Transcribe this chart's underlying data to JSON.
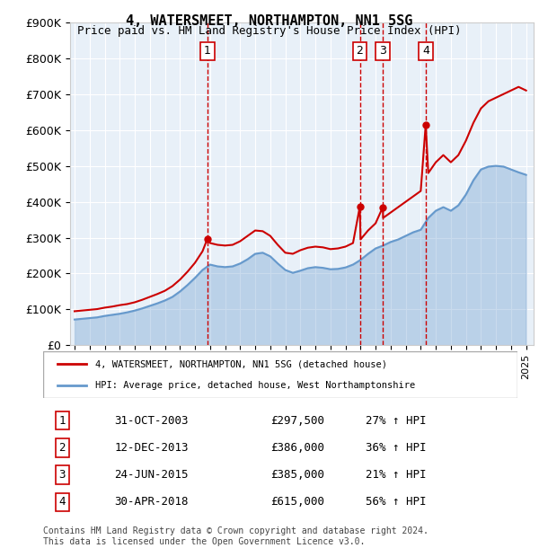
{
  "title": "4, WATERSMEET, NORTHAMPTON, NN1 5SG",
  "subtitle": "Price paid vs. HM Land Registry's House Price Index (HPI)",
  "ylabel_ticks": [
    "£0",
    "£100K",
    "£200K",
    "£300K",
    "£400K",
    "£500K",
    "£600K",
    "£700K",
    "£800K",
    "£900K"
  ],
  "ylim": [
    0,
    900000
  ],
  "xlim_start": 1995.0,
  "xlim_end": 2025.5,
  "background_color": "#ddeeff",
  "plot_bg": "#e8f0f8",
  "red_line_color": "#cc0000",
  "blue_line_color": "#6699cc",
  "sale_dates": [
    2003.83,
    2013.95,
    2015.48,
    2018.33
  ],
  "sale_prices": [
    297500,
    386000,
    385000,
    615000
  ],
  "sale_labels": [
    "1",
    "2",
    "3",
    "4"
  ],
  "legend_label_red": "4, WATERSMEET, NORTHAMPTON, NN1 5SG (detached house)",
  "legend_label_blue": "HPI: Average price, detached house, West Northamptonshire",
  "table_rows": [
    [
      "1",
      "31-OCT-2003",
      "£297,500",
      "27% ↑ HPI"
    ],
    [
      "2",
      "12-DEC-2013",
      "£386,000",
      "36% ↑ HPI"
    ],
    [
      "3",
      "24-JUN-2015",
      "£385,000",
      "21% ↑ HPI"
    ],
    [
      "4",
      "30-APR-2018",
      "£615,000",
      "56% ↑ HPI"
    ]
  ],
  "footnote": "Contains HM Land Registry data © Crown copyright and database right 2024.\nThis data is licensed under the Open Government Licence v3.0.",
  "red_hpi_x": [
    1995.0,
    1995.5,
    1996.0,
    1996.5,
    1997.0,
    1997.5,
    1998.0,
    1998.5,
    1999.0,
    1999.5,
    2000.0,
    2000.5,
    2001.0,
    2001.5,
    2002.0,
    2002.5,
    2003.0,
    2003.5,
    2003.83,
    2004.0,
    2004.5,
    2005.0,
    2005.5,
    2006.0,
    2006.5,
    2007.0,
    2007.5,
    2008.0,
    2008.5,
    2009.0,
    2009.5,
    2010.0,
    2010.5,
    2011.0,
    2011.5,
    2012.0,
    2012.5,
    2013.0,
    2013.5,
    2013.95,
    2014.0,
    2014.5,
    2015.0,
    2015.48,
    2015.5,
    2016.0,
    2016.5,
    2017.0,
    2017.5,
    2018.0,
    2018.33,
    2018.5,
    2019.0,
    2019.5,
    2020.0,
    2020.5,
    2021.0,
    2021.5,
    2022.0,
    2022.5,
    2023.0,
    2023.5,
    2024.0,
    2024.5,
    2025.0
  ],
  "red_hpi_y": [
    95000,
    97000,
    99000,
    101000,
    105000,
    108000,
    112000,
    115000,
    120000,
    127000,
    135000,
    143000,
    152000,
    165000,
    183000,
    205000,
    230000,
    262000,
    297500,
    285000,
    280000,
    278000,
    280000,
    290000,
    305000,
    320000,
    318000,
    305000,
    280000,
    258000,
    255000,
    265000,
    272000,
    275000,
    273000,
    268000,
    270000,
    275000,
    285000,
    386000,
    295000,
    320000,
    340000,
    385000,
    355000,
    370000,
    385000,
    400000,
    415000,
    430000,
    615000,
    480000,
    510000,
    530000,
    510000,
    530000,
    570000,
    620000,
    660000,
    680000,
    690000,
    700000,
    710000,
    720000,
    710000
  ],
  "blue_hpi_x": [
    1995.0,
    1995.5,
    1996.0,
    1996.5,
    1997.0,
    1997.5,
    1998.0,
    1998.5,
    1999.0,
    1999.5,
    2000.0,
    2000.5,
    2001.0,
    2001.5,
    2002.0,
    2002.5,
    2003.0,
    2003.5,
    2004.0,
    2004.5,
    2005.0,
    2005.5,
    2006.0,
    2006.5,
    2007.0,
    2007.5,
    2008.0,
    2008.5,
    2009.0,
    2009.5,
    2010.0,
    2010.5,
    2011.0,
    2011.5,
    2012.0,
    2012.5,
    2013.0,
    2013.5,
    2014.0,
    2014.5,
    2015.0,
    2015.5,
    2016.0,
    2016.5,
    2017.0,
    2017.5,
    2018.0,
    2018.5,
    2019.0,
    2019.5,
    2020.0,
    2020.5,
    2021.0,
    2021.5,
    2022.0,
    2022.5,
    2023.0,
    2023.5,
    2024.0,
    2024.5,
    2025.0
  ],
  "blue_hpi_y": [
    72000,
    74000,
    76000,
    78000,
    82000,
    85000,
    88000,
    92000,
    97000,
    103000,
    110000,
    117000,
    125000,
    135000,
    150000,
    168000,
    188000,
    210000,
    225000,
    220000,
    218000,
    220000,
    228000,
    240000,
    255000,
    258000,
    248000,
    228000,
    210000,
    202000,
    208000,
    215000,
    218000,
    216000,
    212000,
    213000,
    217000,
    225000,
    238000,
    255000,
    270000,
    278000,
    288000,
    295000,
    305000,
    315000,
    322000,
    355000,
    375000,
    385000,
    375000,
    390000,
    420000,
    460000,
    490000,
    498000,
    500000,
    498000,
    490000,
    482000,
    475000
  ]
}
